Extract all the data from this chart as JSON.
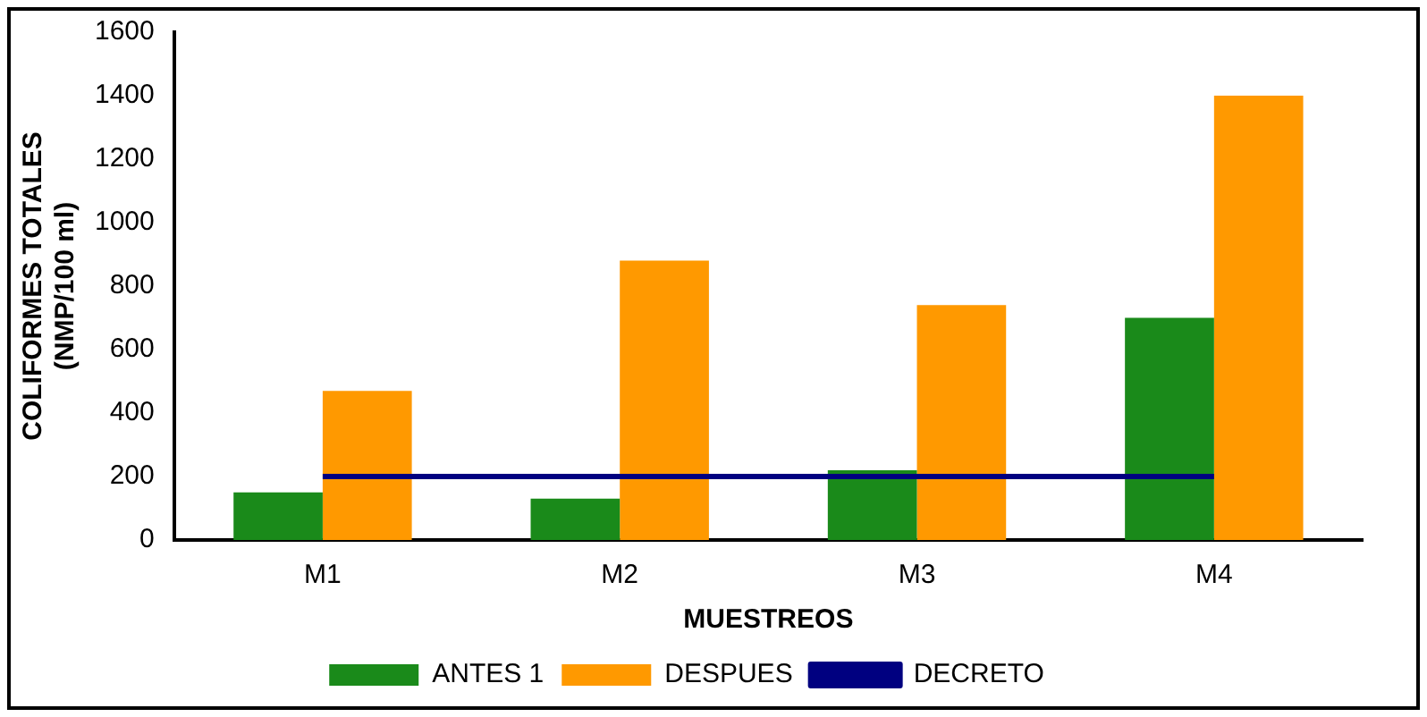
{
  "chart_data": {
    "type": "bar",
    "xlabel": "MUESTREOS",
    "ylabel": "COLIFORMES TOTALES (NMP/100 ml)",
    "categories": [
      "M1",
      "M2",
      "M3",
      "M4"
    ],
    "series": [
      {
        "name": "ANTES 1",
        "color": "#1a8a1a",
        "values": [
          150,
          130,
          220,
          700
        ]
      },
      {
        "name": "DESPUES",
        "color": "#ff9900",
        "values": [
          470,
          880,
          740,
          1400
        ]
      },
      {
        "name": "DECRETO",
        "type": "line",
        "color": "#000080",
        "values": [
          200,
          200,
          200,
          200
        ]
      }
    ],
    "ylim": [
      0,
      1600
    ],
    "yticks": [
      0,
      200,
      400,
      600,
      800,
      1000,
      1200,
      1400,
      1600
    ],
    "grid": false,
    "legend": "bottom",
    "marker": "none"
  }
}
